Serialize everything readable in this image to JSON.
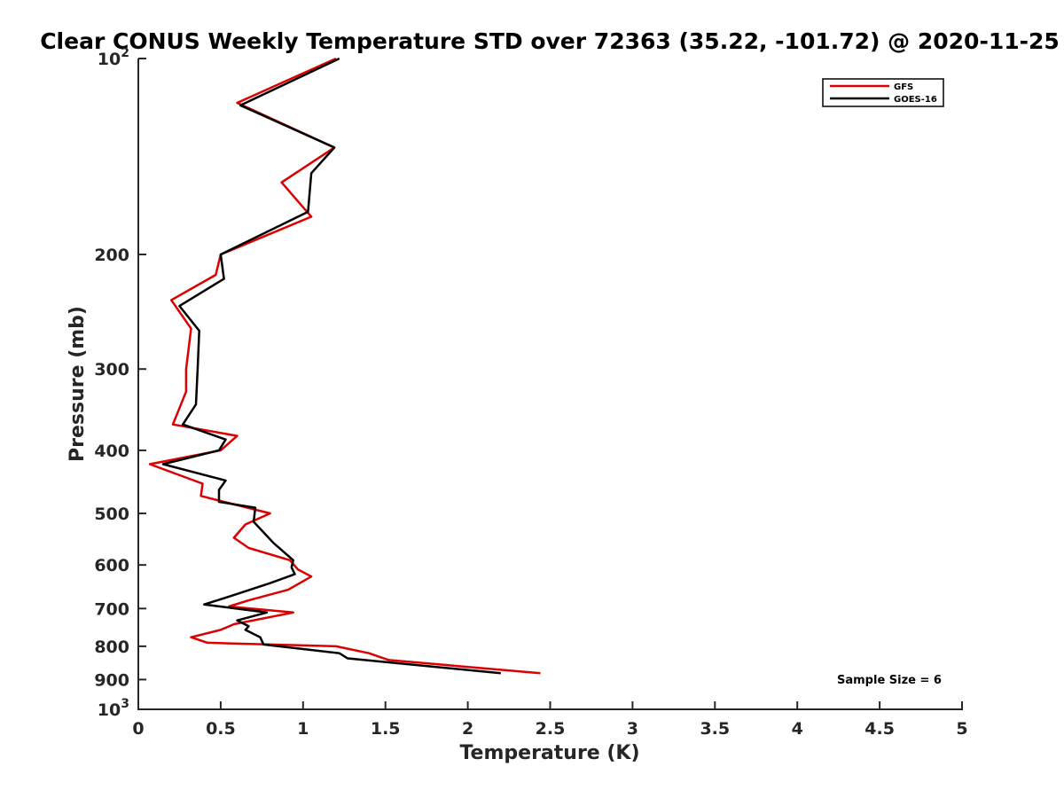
{
  "chart_data": {
    "type": "line",
    "title": "Clear CONUS Weekly Temperature STD over 72363 (35.22, -101.72) @ 2020-11-25",
    "xlabel": "Temperature (K)",
    "ylabel": "Pressure (mb)",
    "xlim": [
      0,
      5
    ],
    "ylim": [
      100,
      1000
    ],
    "y_scale": "log",
    "y_reversed": true,
    "x_ticks": [
      "0",
      "0.5",
      "1",
      "1.5",
      "2",
      "2.5",
      "3",
      "3.5",
      "4",
      "4.5",
      "5"
    ],
    "x_tick_values": [
      0,
      0.5,
      1,
      1.5,
      2,
      2.5,
      3,
      3.5,
      4,
      4.5,
      5
    ],
    "y_tick_values": [
      100,
      200,
      300,
      400,
      500,
      600,
      700,
      800,
      900,
      1000
    ],
    "y_tick_labels": [
      {
        "base": "10",
        "exp": "2"
      },
      {
        "base": "200",
        "exp": ""
      },
      {
        "base": "300",
        "exp": ""
      },
      {
        "base": "400",
        "exp": ""
      },
      {
        "base": "500",
        "exp": ""
      },
      {
        "base": "600",
        "exp": ""
      },
      {
        "base": "700",
        "exp": ""
      },
      {
        "base": "800",
        "exp": ""
      },
      {
        "base": "900",
        "exp": ""
      },
      {
        "base": "10",
        "exp": "3"
      }
    ],
    "legend_position": "top-right",
    "series": [
      {
        "name": "GFS",
        "color": "#dd0000",
        "points": [
          [
            1.2,
            100
          ],
          [
            0.6,
            117
          ],
          [
            1.19,
            137
          ],
          [
            0.87,
            155
          ],
          [
            1.05,
            175
          ],
          [
            0.5,
            200
          ],
          [
            0.47,
            215
          ],
          [
            0.2,
            235
          ],
          [
            0.32,
            260
          ],
          [
            0.29,
            300
          ],
          [
            0.29,
            325
          ],
          [
            0.21,
            365
          ],
          [
            0.6,
            380
          ],
          [
            0.5,
            400
          ],
          [
            0.07,
            420
          ],
          [
            0.39,
            450
          ],
          [
            0.38,
            470
          ],
          [
            0.52,
            480
          ],
          [
            0.8,
            500
          ],
          [
            0.65,
            520
          ],
          [
            0.58,
            545
          ],
          [
            0.67,
            565
          ],
          [
            0.92,
            590
          ],
          [
            0.97,
            610
          ],
          [
            1.05,
            625
          ],
          [
            0.91,
            655
          ],
          [
            0.67,
            680
          ],
          [
            0.55,
            695
          ],
          [
            0.94,
            710
          ],
          [
            0.58,
            740
          ],
          [
            0.5,
            755
          ],
          [
            0.32,
            775
          ],
          [
            0.42,
            790
          ],
          [
            1.2,
            800
          ],
          [
            1.4,
            820
          ],
          [
            1.52,
            840
          ],
          [
            2.44,
            880
          ]
        ]
      },
      {
        "name": "GOES-16",
        "color": "#000000",
        "points": [
          [
            1.22,
            100
          ],
          [
            0.62,
            118
          ],
          [
            1.19,
            137
          ],
          [
            1.05,
            150
          ],
          [
            1.03,
            172
          ],
          [
            0.5,
            200
          ],
          [
            0.52,
            218
          ],
          [
            0.25,
            240
          ],
          [
            0.37,
            262
          ],
          [
            0.36,
            300
          ],
          [
            0.35,
            340
          ],
          [
            0.27,
            365
          ],
          [
            0.53,
            385
          ],
          [
            0.49,
            400
          ],
          [
            0.15,
            420
          ],
          [
            0.53,
            445
          ],
          [
            0.49,
            460
          ],
          [
            0.49,
            480
          ],
          [
            0.71,
            490
          ],
          [
            0.7,
            515
          ],
          [
            0.82,
            555
          ],
          [
            0.94,
            590
          ],
          [
            0.93,
            605
          ],
          [
            0.95,
            620
          ],
          [
            0.8,
            640
          ],
          [
            0.56,
            670
          ],
          [
            0.4,
            690
          ],
          [
            0.78,
            710
          ],
          [
            0.6,
            730
          ],
          [
            0.67,
            745
          ],
          [
            0.65,
            755
          ],
          [
            0.74,
            775
          ],
          [
            0.76,
            795
          ],
          [
            1.22,
            820
          ],
          [
            1.27,
            835
          ],
          [
            2.2,
            880
          ]
        ]
      }
    ],
    "annotations": {
      "sample_size": "Sample Size = 6"
    }
  }
}
